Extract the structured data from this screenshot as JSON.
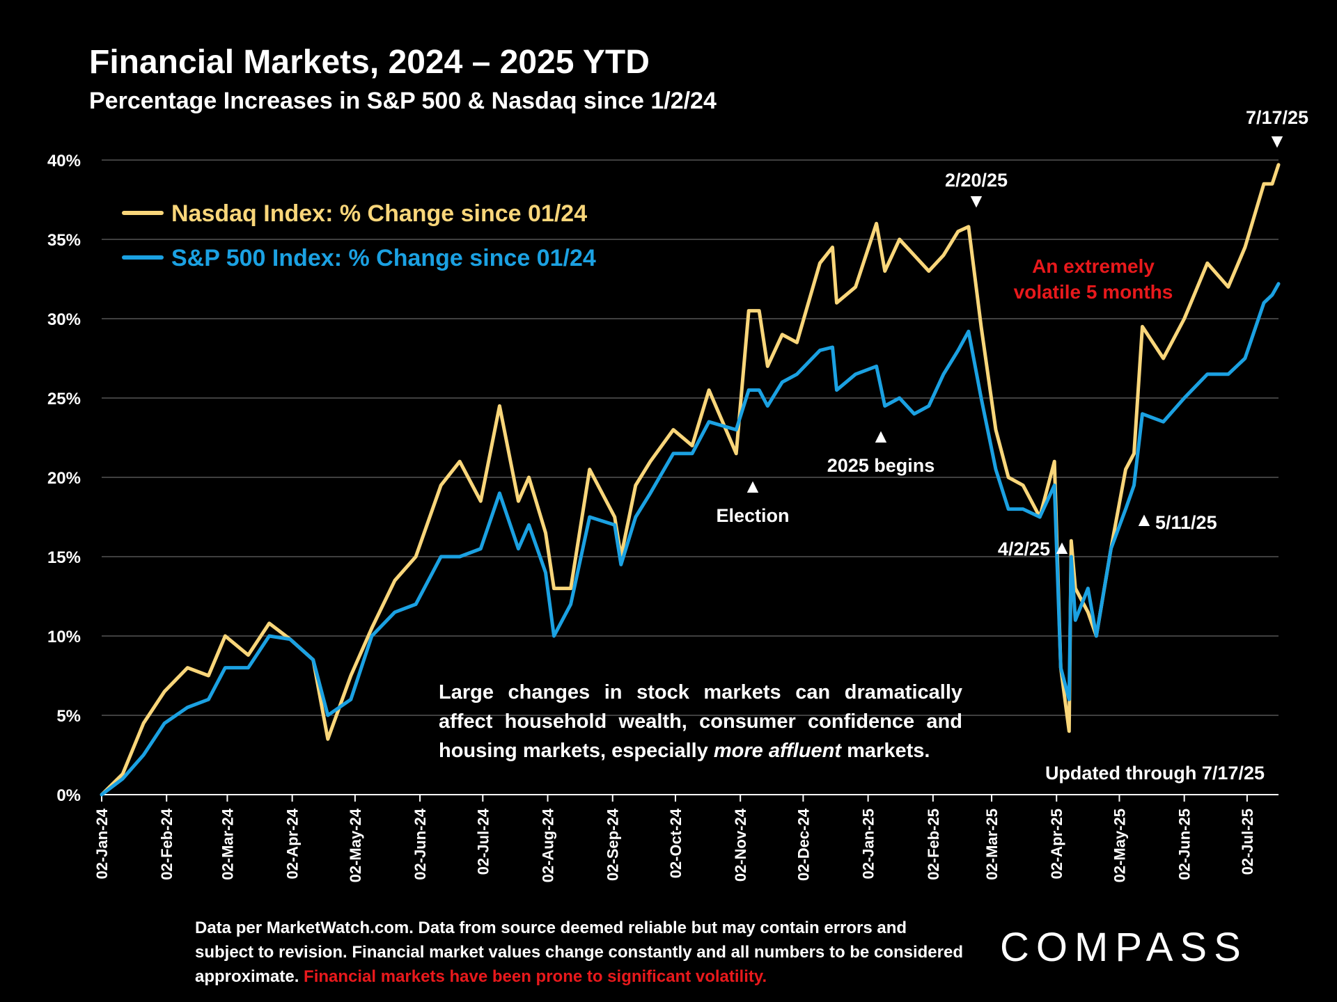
{
  "header": {
    "title": "Financial Markets, 2024 – 2025 YTD",
    "subtitle": "Percentage Increases in S&P 500 & Nasdaq since 1/2/24"
  },
  "note": {
    "before": "Large changes in stock markets can dramatically affect household wealth, consumer confidence and housing markets, especially ",
    "emphasis": "more affluent",
    "after": " markets."
  },
  "updated_label": "Updated through 7/17/25",
  "volatile_label": "An extremely volatile 5 months",
  "footer": {
    "text": "Data per MarketWatch.com. Data from source deemed reliable but may contain errors and subject to revision. Financial market values change constantly and all numbers to be considered approximate. ",
    "warning": "Financial markets have been prone to significant volatility."
  },
  "logo": "COMPASS",
  "colors": {
    "nasdaq": "#f9d67a",
    "sp500": "#1ba1e2",
    "warning": "#e8191c",
    "background": "#000000"
  },
  "chart_data": {
    "type": "line",
    "title": "Financial Markets, 2024 – 2025 YTD",
    "subtitle": "Percentage Increases in S&P 500 & Nasdaq since 1/2/24",
    "xlabel": "",
    "ylabel": "",
    "ylim": [
      0,
      40
    ],
    "y_ticks": [
      "0%",
      "5%",
      "10%",
      "15%",
      "20%",
      "25%",
      "30%",
      "35%",
      "40%"
    ],
    "grid": true,
    "legend_position": "top-left",
    "x_ticks": [
      "02-Jan-24",
      "02-Feb-24",
      "02-Mar-24",
      "02-Apr-24",
      "02-May-24",
      "02-Jun-24",
      "02-Jul-24",
      "02-Aug-24",
      "02-Sep-24",
      "02-Oct-24",
      "02-Nov-24",
      "02-Dec-24",
      "02-Jan-25",
      "02-Feb-25",
      "02-Mar-25",
      "02-Apr-25",
      "02-May-25",
      "02-Jun-25",
      "02-Jul-25"
    ],
    "x": [
      "2024-01-02",
      "2024-01-12",
      "2024-01-22",
      "2024-02-01",
      "2024-02-12",
      "2024-02-22",
      "2024-03-01",
      "2024-03-12",
      "2024-03-22",
      "2024-04-01",
      "2024-04-12",
      "2024-04-19",
      "2024-04-30",
      "2024-05-10",
      "2024-05-21",
      "2024-05-31",
      "2024-06-12",
      "2024-06-21",
      "2024-07-01",
      "2024-07-10",
      "2024-07-19",
      "2024-07-24",
      "2024-08-01",
      "2024-08-05",
      "2024-08-13",
      "2024-08-22",
      "2024-09-03",
      "2024-09-06",
      "2024-09-13",
      "2024-09-20",
      "2024-10-01",
      "2024-10-10",
      "2024-10-18",
      "2024-10-31",
      "2024-11-06",
      "2024-11-11",
      "2024-11-15",
      "2024-11-22",
      "2024-11-29",
      "2024-12-10",
      "2024-12-16",
      "2024-12-18",
      "2024-12-27",
      "2025-01-06",
      "2025-01-10",
      "2025-01-17",
      "2025-01-24",
      "2025-01-31",
      "2025-02-07",
      "2025-02-14",
      "2025-02-19",
      "2025-02-25",
      "2025-03-04",
      "2025-03-10",
      "2025-03-17",
      "2025-03-25",
      "2025-04-01",
      "2025-04-04",
      "2025-04-08",
      "2025-04-09",
      "2025-04-11",
      "2025-04-17",
      "2025-04-21",
      "2025-04-28",
      "2025-05-05",
      "2025-05-09",
      "2025-05-13",
      "2025-05-23",
      "2025-06-02",
      "2025-06-13",
      "2025-06-23",
      "2025-07-01",
      "2025-07-10",
      "2025-07-14",
      "2025-07-17"
    ],
    "series": [
      {
        "name": "Nasdaq Index: % Change since 01/24",
        "color": "#f9d67a",
        "values": [
          0,
          1.3,
          4.5,
          6.5,
          8,
          7.5,
          10,
          8.8,
          10.8,
          9.8,
          8.5,
          3.5,
          7.5,
          10.5,
          13.5,
          15,
          19.5,
          21,
          18.5,
          24.5,
          18.5,
          20,
          16.5,
          13,
          13,
          20.5,
          17.5,
          15,
          19.5,
          21,
          23,
          22,
          25.5,
          21.5,
          30.5,
          30.5,
          27,
          29,
          28.5,
          33.5,
          34.5,
          31,
          32,
          36,
          33,
          35,
          34,
          33,
          34,
          35.5,
          35.8,
          29.5,
          23,
          20,
          19.5,
          17.5,
          21,
          8,
          4,
          16,
          13,
          11.5,
          10,
          15.5,
          20.5,
          21.5,
          29.5,
          27.5,
          30,
          33.5,
          32,
          34.5,
          38.5,
          38.5,
          39.7
        ]
      },
      {
        "name": "S&P 500 Index: % Change since 01/24",
        "color": "#1ba1e2",
        "values": [
          0,
          1,
          2.5,
          4.5,
          5.5,
          6,
          8,
          8,
          10,
          9.8,
          8.5,
          5,
          6,
          10,
          11.5,
          12,
          15,
          15,
          15.5,
          19,
          15.5,
          17,
          14,
          10,
          12,
          17.5,
          17,
          14.5,
          17.5,
          19,
          21.5,
          21.5,
          23.5,
          23,
          25.5,
          25.5,
          24.5,
          26,
          26.5,
          28,
          28.2,
          25.5,
          26.5,
          27,
          24.5,
          25,
          24,
          24.5,
          26.5,
          28,
          29.2,
          25,
          20.5,
          18,
          18,
          17.5,
          19.5,
          8,
          6,
          15,
          11,
          13,
          10,
          15.5,
          18,
          19.5,
          24,
          23.5,
          25,
          26.5,
          26.5,
          27.5,
          31,
          31.5,
          32.2
        ]
      }
    ],
    "annotations": [
      {
        "label": "Election",
        "x": "2024-11-05",
        "marker": "▲"
      },
      {
        "label": "2025 begins",
        "x": "2025-01-02",
        "marker": "▲"
      },
      {
        "label": "2/20/25",
        "x": "2025-02-20",
        "marker": "▼"
      },
      {
        "label": "4/2/25",
        "x": "2025-04-02",
        "marker": "▲"
      },
      {
        "label": "5/11/25",
        "x": "2025-05-11",
        "marker": "▲"
      },
      {
        "label": "7/17/25",
        "x": "2025-07-17",
        "marker": "▼"
      }
    ]
  }
}
